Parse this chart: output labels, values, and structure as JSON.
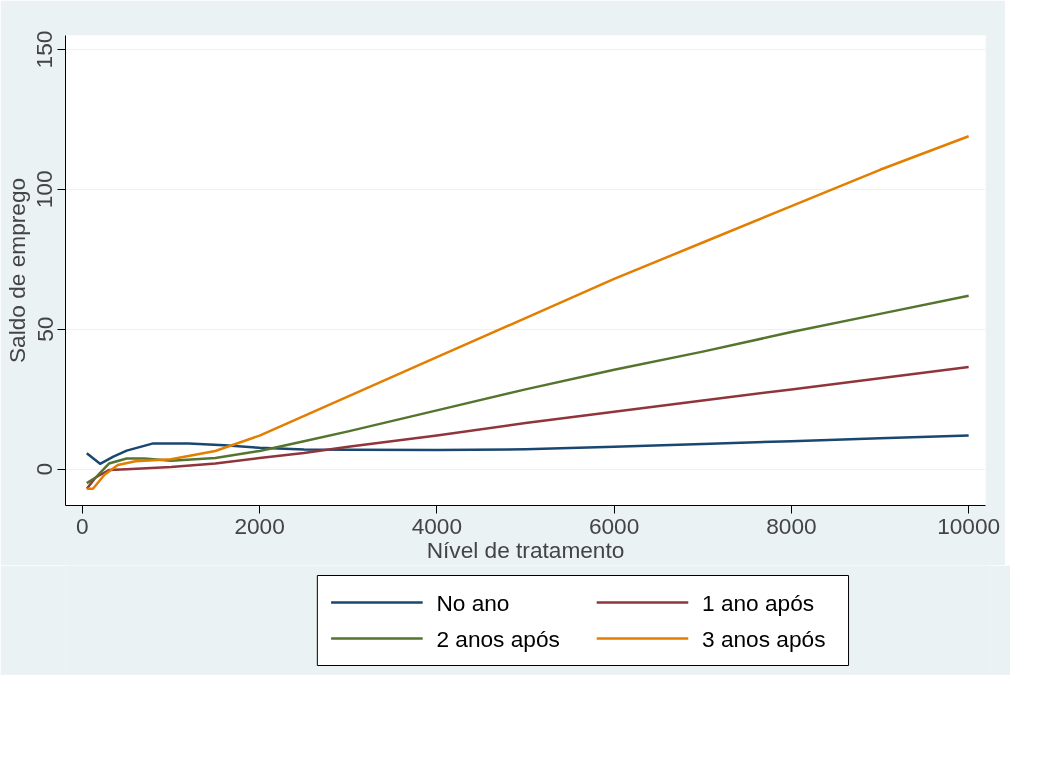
{
  "chart_data": {
    "type": "line",
    "xlabel": "Nível de tratamento",
    "ylabel": "Saldo de emprego",
    "xlim": [
      -190,
      10190
    ],
    "ylim": [
      -13,
      155
    ],
    "xticks": [
      0,
      2000,
      4000,
      6000,
      8000,
      10000
    ],
    "yticks": [
      0,
      50,
      100,
      150
    ],
    "grid": "y",
    "legend": "bottom",
    "line_style": "solid",
    "marker": "none",
    "series": [
      {
        "name": "No ano",
        "color": "#1a476f",
        "x": [
          50,
          200,
          350,
          500,
          800,
          1200,
          1600,
          2000,
          2500,
          3000,
          4000,
          5000,
          6000,
          7000,
          8000,
          9000,
          10000
        ],
        "values": [
          5.7,
          1.9,
          4.5,
          6.6,
          9.2,
          9.2,
          8.5,
          7.6,
          7.0,
          6.9,
          6.8,
          7.1,
          8.0,
          9.0,
          10.0,
          11.0,
          12.0
        ]
      },
      {
        "name": "1 ano após",
        "color": "#90353b",
        "x": [
          50,
          150,
          300,
          500,
          1000,
          1500,
          2000,
          2500,
          3000,
          4000,
          5000,
          6000,
          7000,
          8000,
          9000,
          10000
        ],
        "values": [
          -7,
          -3,
          -0.3,
          0,
          0.8,
          2,
          4,
          5.8,
          8,
          12,
          16.5,
          20.5,
          24.5,
          28.5,
          32.5,
          36.5
        ]
      },
      {
        "name": "2 anos após",
        "color": "#55752f",
        "x": [
          50,
          150,
          300,
          500,
          700,
          1000,
          1500,
          2000,
          2500,
          3000,
          4000,
          5000,
          6000,
          7000,
          8000,
          9000,
          10000
        ],
        "values": [
          -5,
          -3,
          2,
          3.8,
          3.8,
          3,
          4,
          6.5,
          10,
          13.5,
          21,
          28.5,
          35.5,
          42,
          49,
          55.5,
          62
        ]
      },
      {
        "name": "3 anos após",
        "color": "#e37e00",
        "x": [
          50,
          120,
          250,
          400,
          600,
          1000,
          1500,
          2000,
          3000,
          4000,
          5000,
          6000,
          7000,
          8000,
          9000,
          10000
        ],
        "values": [
          -7,
          -7,
          -2,
          1.5,
          2.8,
          3.5,
          6.5,
          12,
          26,
          40,
          54,
          68,
          81,
          94,
          107,
          119
        ]
      }
    ]
  }
}
